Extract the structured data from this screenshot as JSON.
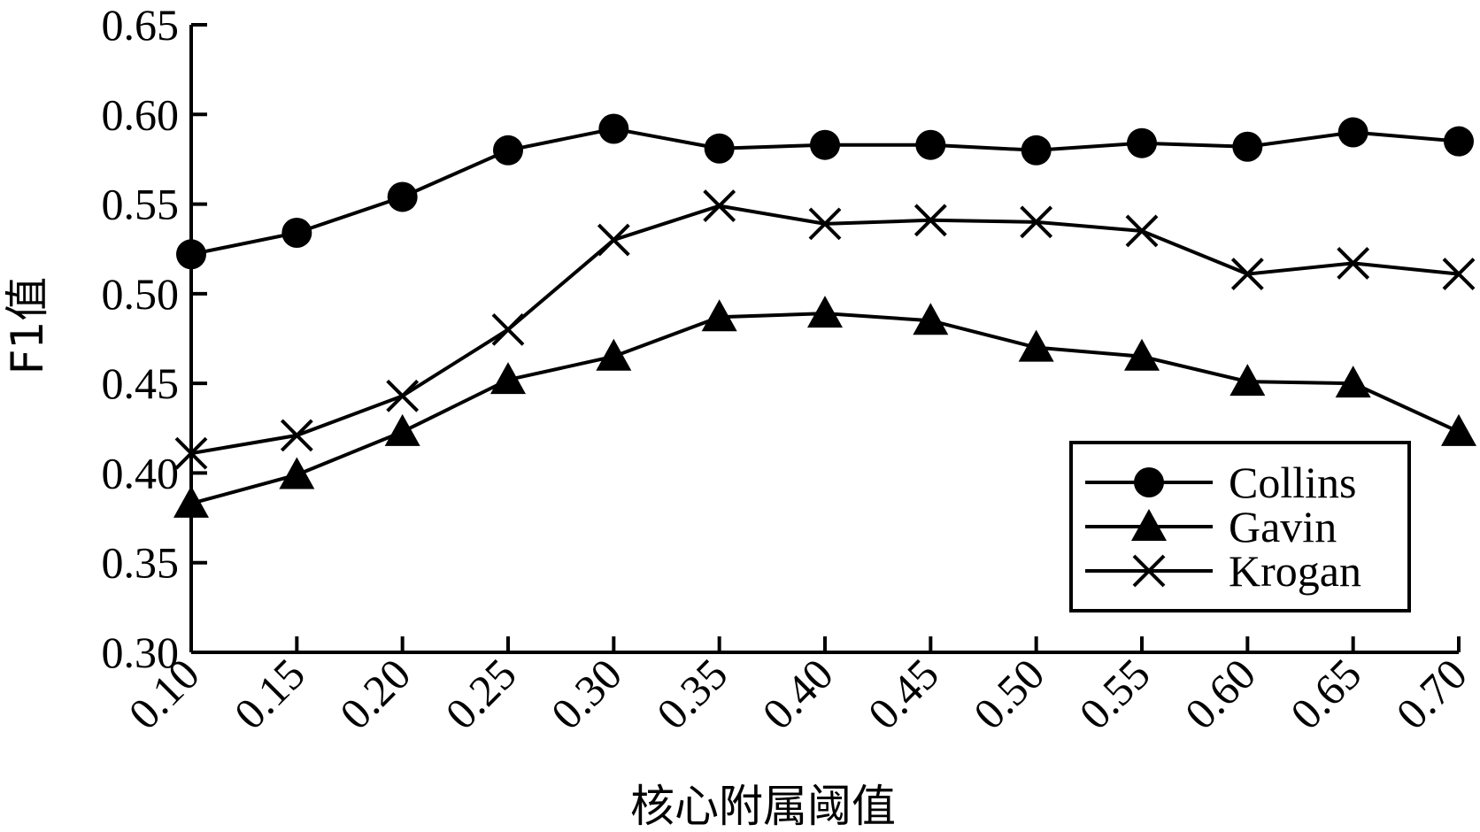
{
  "chart_data": {
    "type": "line",
    "title": "",
    "xlabel": "核心附属阈值",
    "ylabel": "F1值",
    "x": [
      "0.10",
      "0.15",
      "0.20",
      "0.25",
      "0.30",
      "0.35",
      "0.40",
      "0.45",
      "0.50",
      "0.55",
      "0.60",
      "0.65",
      "0.70"
    ],
    "yticks": [
      "0.30",
      "0.35",
      "0.40",
      "0.45",
      "0.50",
      "0.55",
      "0.60",
      "0.65"
    ],
    "ylim": [
      0.3,
      0.65
    ],
    "grid": false,
    "legend_position": "bottom-right",
    "series": [
      {
        "name": "Collins",
        "marker": "circle",
        "values": [
          0.522,
          0.534,
          0.554,
          0.58,
          0.592,
          0.581,
          0.583,
          0.583,
          0.58,
          0.584,
          0.582,
          0.59,
          0.585
        ]
      },
      {
        "name": "Gavin",
        "marker": "triangle",
        "values": [
          0.383,
          0.399,
          0.423,
          0.452,
          0.465,
          0.487,
          0.489,
          0.485,
          0.47,
          0.465,
          0.451,
          0.45,
          0.423
        ]
      },
      {
        "name": "Krogan",
        "marker": "x",
        "values": [
          0.411,
          0.421,
          0.443,
          0.48,
          0.53,
          0.549,
          0.539,
          0.541,
          0.54,
          0.535,
          0.511,
          0.517,
          0.511
        ]
      }
    ]
  }
}
